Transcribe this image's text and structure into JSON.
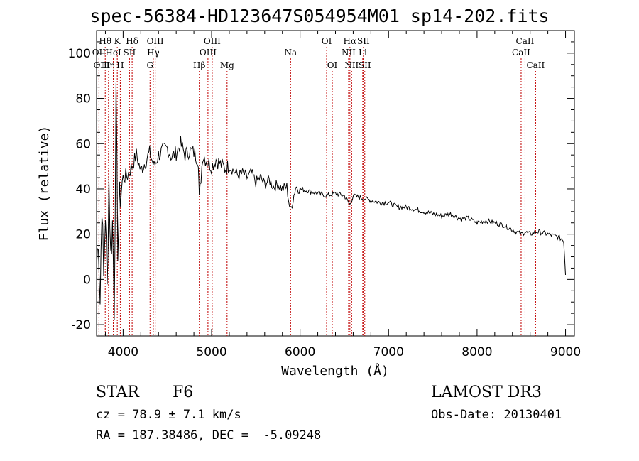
{
  "chart_data": {
    "type": "line",
    "title": "spec-56384-HD123647S054954M01_sp14-202.fits",
    "xlabel": "Wavelength (Å)",
    "ylabel": "Flux (relative)",
    "xlim": [
      3700,
      9100
    ],
    "ylim": [
      -25,
      110
    ],
    "x_ticks": [
      4000,
      5000,
      6000,
      7000,
      8000,
      9000
    ],
    "y_ticks": [
      -20,
      0,
      20,
      40,
      60,
      80,
      100
    ],
    "series": [
      {
        "name": "flux",
        "x": [
          3700,
          3720,
          3740,
          3760,
          3780,
          3800,
          3820,
          3840,
          3860,
          3880,
          3900,
          3920,
          3940,
          3960,
          3980,
          4000,
          4050,
          4100,
          4150,
          4200,
          4250,
          4300,
          4350,
          4400,
          4450,
          4500,
          4550,
          4600,
          4650,
          4700,
          4750,
          4800,
          4850,
          4861,
          4900,
          4950,
          5000,
          5050,
          5100,
          5150,
          5200,
          5250,
          5300,
          5350,
          5400,
          5450,
          5500,
          5550,
          5600,
          5650,
          5700,
          5750,
          5800,
          5850,
          5890,
          5950,
          6000,
          6100,
          6200,
          6300,
          6400,
          6500,
          6563,
          6600,
          6700,
          6800,
          6900,
          7000,
          7100,
          7200,
          7300,
          7400,
          7500,
          7600,
          7700,
          7800,
          7900,
          8000,
          8100,
          8200,
          8300,
          8400,
          8498,
          8542,
          8600,
          8662,
          8700,
          8800,
          8900,
          8950,
          8980,
          9000
        ],
        "values": [
          5,
          20,
          -10,
          35,
          0,
          30,
          -5,
          45,
          10,
          25,
          -12,
          79,
          15,
          35,
          40,
          45,
          46,
          50,
          55,
          48,
          52,
          56,
          50,
          55,
          57,
          58,
          54,
          56,
          60,
          55,
          57,
          56,
          53,
          35,
          55,
          52,
          50,
          53,
          51,
          49,
          50,
          48,
          46,
          47,
          45,
          47,
          43,
          45,
          42,
          44,
          41,
          42,
          40,
          41,
          30,
          41,
          40,
          39,
          38,
          37,
          38,
          37,
          33,
          37,
          36,
          35,
          34,
          34,
          32,
          32,
          31,
          30,
          29,
          28,
          29,
          27,
          27,
          25,
          26,
          25,
          24,
          22,
          20,
          21,
          20,
          21,
          21,
          20,
          19,
          18,
          17,
          2
        ]
      }
    ],
    "lines": [
      {
        "label": "Hθ",
        "x": 3798,
        "row": 1
      },
      {
        "label": "OII",
        "x": 3727,
        "row": 2
      },
      {
        "label": "OIII",
        "x": 3760,
        "row": 3
      },
      {
        "label": "K",
        "x": 3934,
        "row": 1
      },
      {
        "label": "HeI",
        "x": 3889,
        "row": 2
      },
      {
        "label": "Hη",
        "x": 3835,
        "row": 3
      },
      {
        "label": "Hδ",
        "x": 4102,
        "row": 1
      },
      {
        "label": "SII",
        "x": 4072,
        "row": 2
      },
      {
        "label": "H",
        "x": 3968,
        "row": 3
      },
      {
        "label": "OIII",
        "x": 4363,
        "row": 1
      },
      {
        "label": "Hγ",
        "x": 4341,
        "row": 2
      },
      {
        "label": "G",
        "x": 4304,
        "row": 3
      },
      {
        "label": "Hβ",
        "x": 4861,
        "row": 3
      },
      {
        "label": "OIII",
        "x": 5007,
        "row": 1
      },
      {
        "label": "OIII",
        "x": 4959,
        "row": 2
      },
      {
        "label": "Mg",
        "x": 5175,
        "row": 3
      },
      {
        "label": "Na",
        "x": 5893,
        "row": 2
      },
      {
        "label": "OI",
        "x": 6300,
        "row": 1
      },
      {
        "label": "OI",
        "x": 6364,
        "row": 3
      },
      {
        "label": "Hα",
        "x": 6563,
        "row": 1
      },
      {
        "label": "SII",
        "x": 6716,
        "row": 1
      },
      {
        "label": "NII",
        "x": 6548,
        "row": 2
      },
      {
        "label": "Li",
        "x": 6708,
        "row": 2
      },
      {
        "label": "NII",
        "x": 6583,
        "row": 3
      },
      {
        "label": "SII",
        "x": 6731,
        "row": 3
      },
      {
        "label": "CaII",
        "x": 8542,
        "row": 1
      },
      {
        "label": "CaII",
        "x": 8498,
        "row": 2
      },
      {
        "label": "CaII",
        "x": 8662,
        "row": 3
      }
    ]
  },
  "info": {
    "object_type": "STAR",
    "subclass": "F6",
    "survey": "LAMOST DR3",
    "cz": "cz = 78.9 ± 7.1 km/s",
    "obs_date": "Obs-Date: 20130401",
    "coords": "RA = 187.38486, DEC =  -5.09248"
  }
}
